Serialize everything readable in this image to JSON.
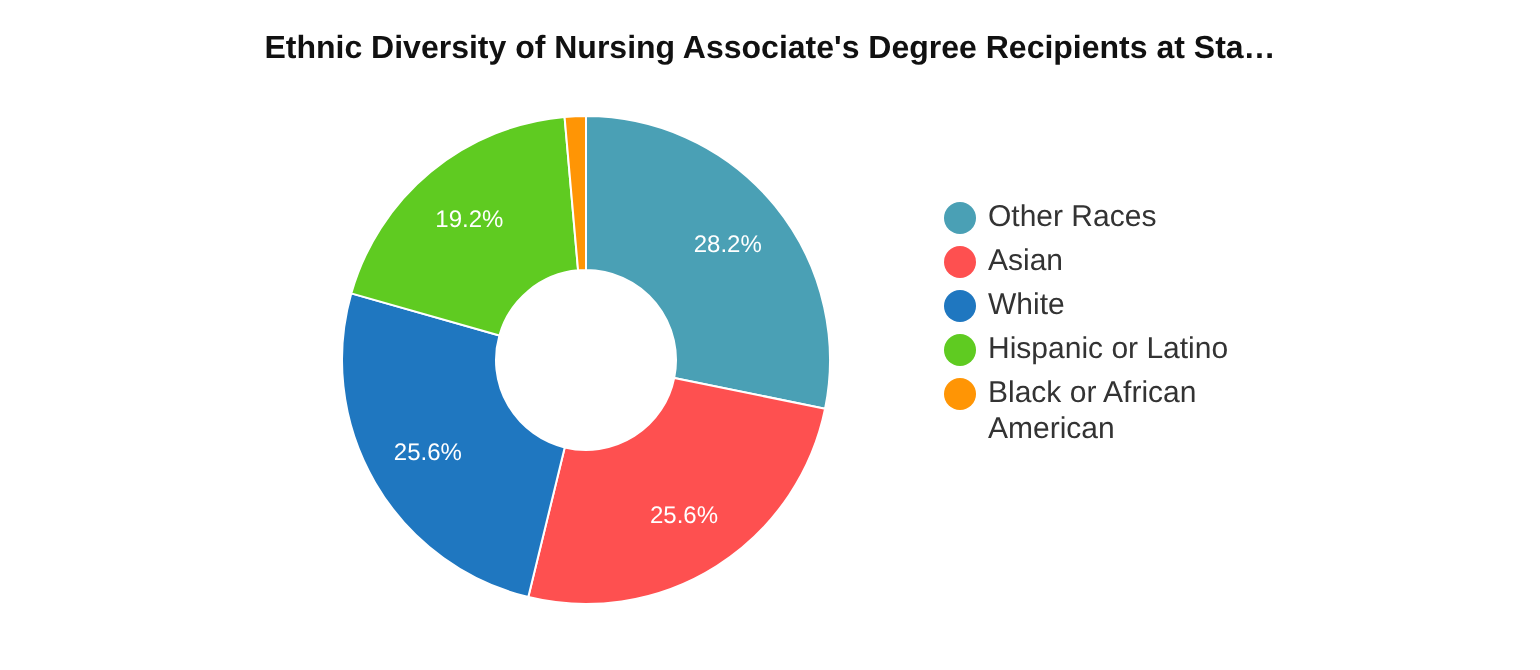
{
  "chart_data": {
    "type": "donut",
    "title": "Ethnic Diversity of Nursing Associate's Degree Recipients at Sta…",
    "categories": [
      "Other Races",
      "Asian",
      "White",
      "Hispanic or Latino",
      "Black or African American"
    ],
    "values": [
      28.2,
      25.6,
      25.6,
      19.2,
      1.4
    ],
    "colors": [
      "#4aa0b5",
      "#fe5050",
      "#1f77c0",
      "#5fcb21",
      "#ff9505"
    ],
    "value_labels": [
      "28.2%",
      "25.6%",
      "25.6%",
      "19.2%",
      null
    ],
    "legend": "right"
  }
}
